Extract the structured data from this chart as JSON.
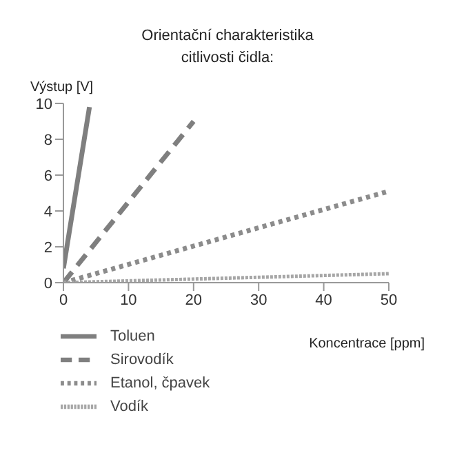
{
  "chart_data": {
    "type": "line",
    "title": "Orientační charakteristika\ncitlivosti čidla:",
    "xlabel": "Koncentrace [ppm]",
    "ylabel": "Výstup [V]",
    "xlim": [
      0,
      50
    ],
    "xticks": [
      0,
      10,
      20,
      30,
      40,
      50
    ],
    "ylim": [
      0,
      10
    ],
    "yticks": [
      0,
      2,
      4,
      6,
      8,
      10
    ],
    "legend": "bottom",
    "marker": "none",
    "series": [
      {
        "name": "Toluen",
        "color": "#7f7f7f",
        "line_style": "solid",
        "x": [
          0,
          4
        ],
        "values": [
          0.8,
          9.8
        ]
      },
      {
        "name": "Sirovodík",
        "color": "#7f7f7f",
        "line_style": "dashed",
        "x": [
          0,
          20
        ],
        "values": [
          0,
          9
        ]
      },
      {
        "name": "Etanol, čpavek",
        "color": "#8c8c8c",
        "line_style": "dotted",
        "x": [
          0,
          50
        ],
        "values": [
          0,
          5.1
        ]
      },
      {
        "name": "Vodík",
        "color": "#a6a6a6",
        "line_style": "dotted",
        "x": [
          0,
          50
        ],
        "values": [
          0,
          0.5
        ]
      }
    ]
  }
}
